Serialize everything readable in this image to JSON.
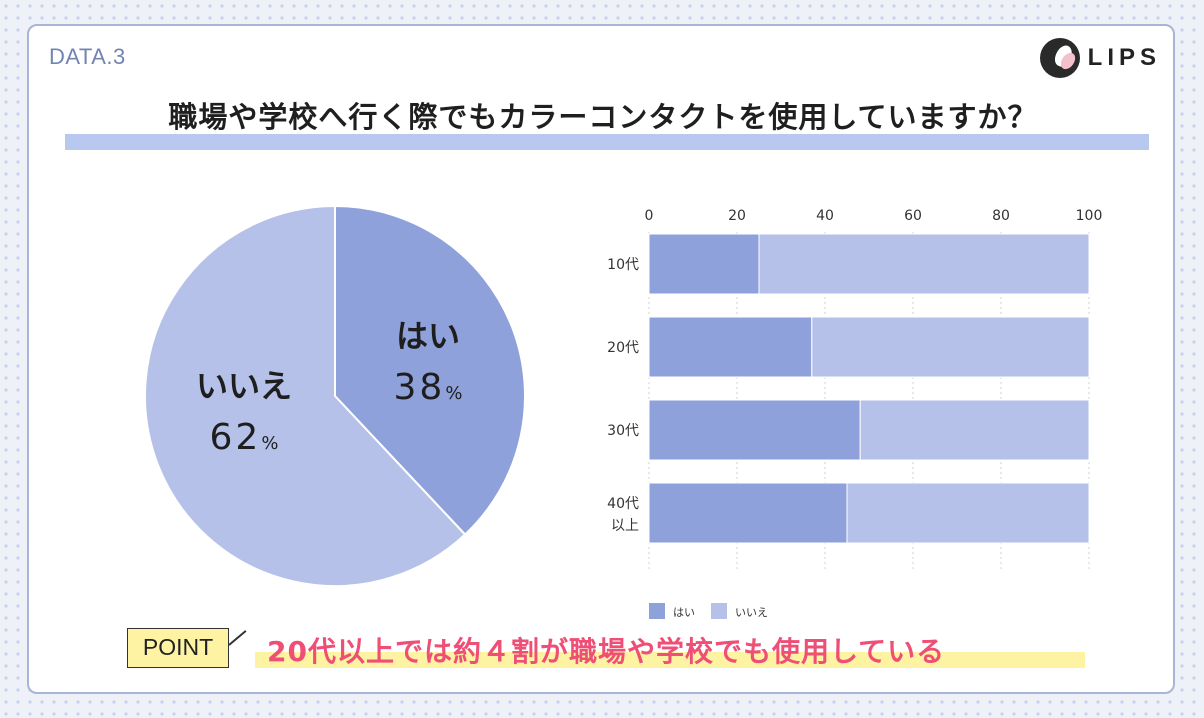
{
  "header": {
    "data_label": "DATA.3",
    "logo_text": "LIPS"
  },
  "title": "職場や学校へ行く際でもカラーコンタクトを使用していますか？",
  "colors": {
    "yes": "#8fa1da",
    "no": "#b5c1e9",
    "accent_text": "#ef4f76",
    "highlight": "#fdf3a2",
    "title_bar": "#b9c8ee"
  },
  "pie": {
    "yes": {
      "label": "はい",
      "pct": "38",
      "sign": "%"
    },
    "no": {
      "label": "いいえ",
      "pct": "62",
      "sign": "%"
    }
  },
  "chart_data": [
    {
      "type": "pie",
      "categories": [
        "はい",
        "いいえ"
      ],
      "values": [
        38,
        62
      ]
    },
    {
      "type": "bar",
      "orientation": "horizontal",
      "stacked": true,
      "categories": [
        "10代",
        "20代",
        "30代",
        "40代\n以上"
      ],
      "series": [
        {
          "name": "はい",
          "values": [
            25,
            37,
            48,
            45
          ]
        },
        {
          "name": "いいえ",
          "values": [
            75,
            63,
            52,
            55
          ]
        }
      ],
      "xlim": [
        0,
        100
      ],
      "xticks": [
        "0",
        "20",
        "40",
        "60",
        "80",
        "100"
      ],
      "grid": true,
      "legend": "bottom-left"
    }
  ],
  "point": {
    "badge": "POINT",
    "text": "20代以上では約４割が職場や学校でも使用している"
  }
}
